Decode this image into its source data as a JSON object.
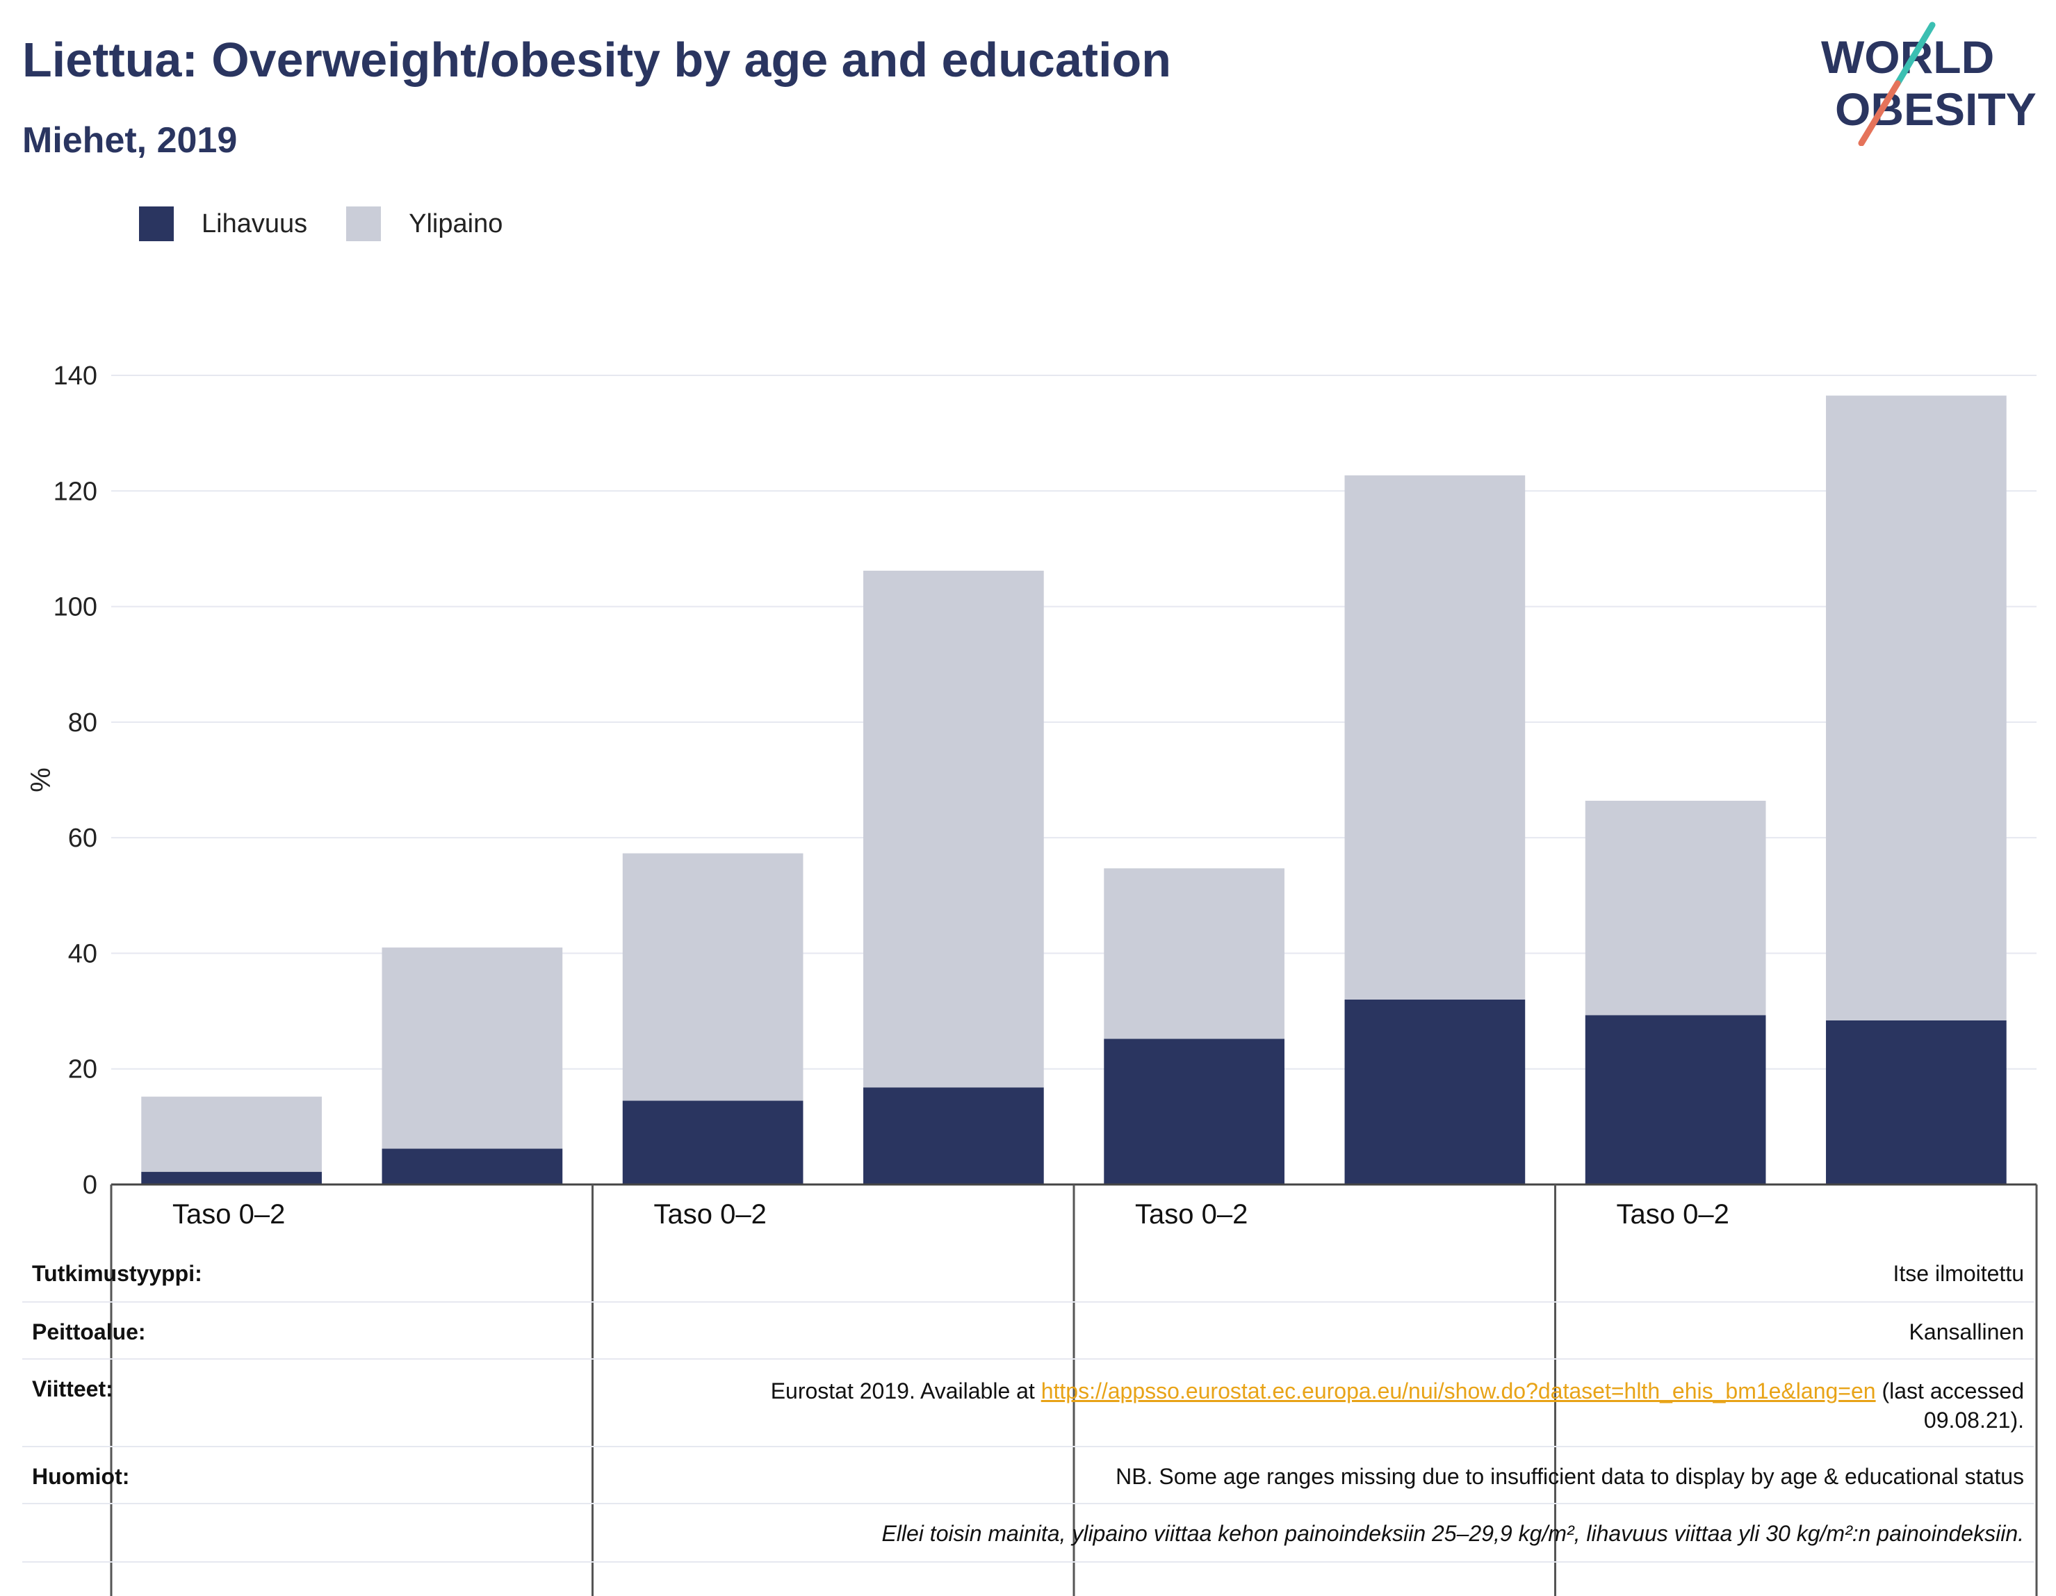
{
  "header": {
    "title": "Liettua: Overweight/obesity by age and education",
    "subtitle": "Miehet, 2019"
  },
  "logo": {
    "line1": "WORLD",
    "line2": "OBESITY",
    "accent_colors": [
      "#3bbfb2",
      "#e5735a"
    ],
    "text_color": "#2a3560"
  },
  "chart_data": {
    "type": "bar",
    "stacked": true,
    "categories": [
      "Taso 0–2",
      "",
      "Taso 0–2",
      "",
      "Taso 0–2",
      "",
      "Taso 0–2",
      ""
    ],
    "group_labels": [
      "Taso 0–2",
      "Taso 0–2",
      "Taso 0–2",
      "Taso 0–2"
    ],
    "series": [
      {
        "name": "Lihavuus",
        "color": "#2a3560",
        "values": [
          2.2,
          6.2,
          14.5,
          16.8,
          25.2,
          32.0,
          29.3,
          28.4
        ]
      },
      {
        "name": "Ylipaino",
        "color": "#cacdd8",
        "values": [
          13.0,
          34.8,
          42.8,
          89.4,
          29.5,
          90.7,
          37.1,
          108.1
        ]
      }
    ],
    "ylabel": "%",
    "xlabel": "",
    "ylim": [
      0,
      140
    ],
    "yticks": [
      0,
      20,
      40,
      60,
      80,
      100,
      120,
      140
    ],
    "grid": true,
    "legend_position": "top-left"
  },
  "info": {
    "rows": [
      {
        "label": "Tutkimustyyppi:",
        "value": "Itse ilmoitettu"
      },
      {
        "label": "Peittoalue:",
        "value": "Kansallinen"
      },
      {
        "label": "Viitteet:",
        "value_prefix": "Eurostat 2019. Available at ",
        "link": "https://appsso.eurostat.ec.europa.eu/nui/show.do?dataset=hlth_ehis_bm1e&lang=en",
        "value_suffix": " (last accessed",
        "value_line2": "09.08.21)."
      },
      {
        "label": "Huomiot:",
        "value": "NB. Some age ranges missing due to insufficient data to display by age & educational status"
      },
      {
        "label": "",
        "value": "Ellei toisin mainita, ylipaino viittaa kehon painoindeksiin 25–29,9 kg/m², lihavuus viittaa yli 30 kg/m²:n painoindeksiin."
      }
    ]
  }
}
